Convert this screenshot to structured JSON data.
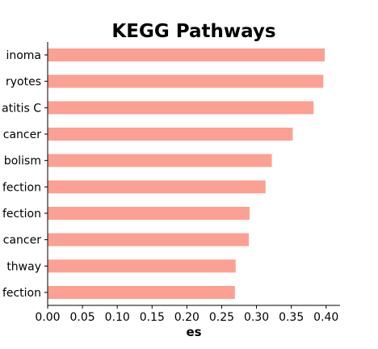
{
  "chart_data": {
    "type": "bar",
    "orientation": "horizontal",
    "title": "KEGG Pathways",
    "xlabel": "es",
    "ylabel": "",
    "categories_visible": [
      "inoma",
      "ryotes",
      "atitis C",
      "cancer",
      "bolism",
      "fection",
      "fection",
      "cancer",
      "thway",
      "fection"
    ],
    "values": [
      0.398,
      0.396,
      0.382,
      0.352,
      0.322,
      0.313,
      0.29,
      0.289,
      0.27,
      0.269
    ],
    "xlim": [
      0.0,
      0.42
    ],
    "xticks": [
      "0.00",
      "0.05",
      "0.10",
      "0.15",
      "0.20",
      "0.25",
      "0.30",
      "0.35",
      "0.40"
    ],
    "bar_color": "#fca093",
    "grid": false,
    "legend": "none"
  }
}
